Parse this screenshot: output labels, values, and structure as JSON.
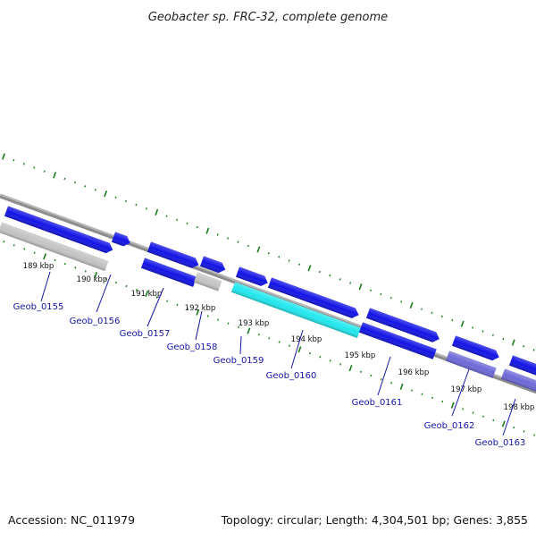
{
  "title": "Geobacter sp. FRC-32, complete genome",
  "footer": {
    "accession": "Accession: NC_011979",
    "summary": "Topology: circular; Length: 4,304,501 bp; Genes: 3,855"
  },
  "colors": {
    "backbone": "#8c8c8c",
    "tick": "#1a7a1a",
    "gene_blue": "#1414e6",
    "gene_gray": "#c4c4c4",
    "gene_cyan": "#22e8ee",
    "gene_purple": "#6e6ad8",
    "label": "#1515a8"
  },
  "kbp_labels": [
    "189 kbp",
    "190 kbp",
    "191 kbp",
    "192 kbp",
    "193 kbp",
    "194 kbp",
    "195 kbp",
    "196 kbp",
    "197 kbp",
    "198 kbp"
  ],
  "genes": [
    {
      "label": "Geob_0155",
      "color": "gene_gray",
      "strand": "inner"
    },
    {
      "label": "Geob_0156",
      "color": "gene_blue",
      "strand": "outer"
    },
    {
      "label": "Geob_0157",
      "color": "gene_blue",
      "strand": "inner"
    },
    {
      "label": "Geob_0158",
      "color": "gene_gray",
      "strand": "inner"
    },
    {
      "label": "Geob_0159",
      "color": "gene_cyan",
      "strand": "inner"
    },
    {
      "label": "Geob_0160",
      "color": "gene_blue",
      "strand": "outer"
    },
    {
      "label": "Geob_0161",
      "color": "gene_blue",
      "strand": "inner"
    },
    {
      "label": "Geob_0162",
      "color": "gene_purple",
      "strand": "inner"
    },
    {
      "label": "Geob_0163",
      "color": "gene_purple",
      "strand": "inner"
    }
  ]
}
